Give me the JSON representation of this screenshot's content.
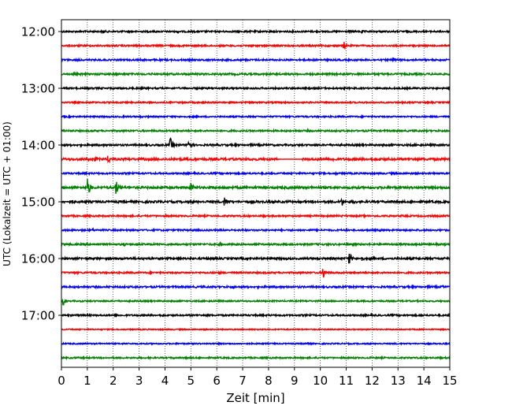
{
  "chart_data": {
    "type": "line",
    "title": "",
    "xlabel": "Zeit  [min]",
    "ylabel": "UTC (Lokalzeit = UTC + 01:00)",
    "xlim": [
      0,
      15
    ],
    "x_ticks": [
      "0",
      "1",
      "2",
      "3",
      "4",
      "5",
      "6",
      "7",
      "8",
      "9",
      "10",
      "11",
      "12",
      "13",
      "14",
      "15"
    ],
    "y_ticks": [
      {
        "row": 0,
        "label": "12:00"
      },
      {
        "row": 4,
        "label": "13:00"
      },
      {
        "row": 8,
        "label": "14:00"
      },
      {
        "row": 12,
        "label": "15:00"
      },
      {
        "row": 16,
        "label": "16:00"
      },
      {
        "row": 20,
        "label": "17:00"
      }
    ],
    "grid": "vertical dotted at each minute",
    "trace_colors": [
      "#000000",
      "#ff0000",
      "#0000ff",
      "#008000"
    ],
    "rows": [
      {
        "start": "12:00",
        "color": "#000000",
        "amp": 1.0,
        "events": [
          {
            "t": 1.6,
            "a": 4
          },
          {
            "t": 4.5,
            "a": 2.5
          },
          {
            "t": 11.6,
            "a": 2.5
          }
        ]
      },
      {
        "start": "12:15",
        "color": "#ff0000",
        "amp": 1.0,
        "events": [
          {
            "t": 10.9,
            "a": 6
          },
          {
            "t": 7.3,
            "a": 2.5
          }
        ]
      },
      {
        "start": "12:30",
        "color": "#0000ff",
        "amp": 1.0,
        "events": [
          {
            "t": 12.8,
            "a": 5
          },
          {
            "t": 5.5,
            "a": 2
          }
        ]
      },
      {
        "start": "12:45",
        "color": "#008000",
        "amp": 1.1,
        "events": [
          {
            "t": 3.5,
            "a": 2
          },
          {
            "t": 11.2,
            "a": 2
          }
        ]
      },
      {
        "start": "13:00",
        "color": "#000000",
        "amp": 1.0,
        "events": [
          {
            "t": 6.2,
            "a": 2
          }
        ]
      },
      {
        "start": "13:15",
        "color": "#ff0000",
        "amp": 0.9,
        "events": []
      },
      {
        "start": "13:30",
        "color": "#0000ff",
        "amp": 0.9,
        "events": [
          {
            "t": 3.0,
            "a": 2
          }
        ]
      },
      {
        "start": "13:45",
        "color": "#008000",
        "amp": 1.0,
        "events": [
          {
            "t": 9.5,
            "a": 2
          }
        ]
      },
      {
        "start": "14:00",
        "color": "#000000",
        "amp": 1.1,
        "events": [
          {
            "t": 4.2,
            "a": 10
          },
          {
            "t": 4.9,
            "a": 10
          }
        ]
      },
      {
        "start": "14:15",
        "color": "#ff0000",
        "amp": 1.4,
        "events": [
          {
            "t": 1.8,
            "a": 7
          },
          {
            "t": 1.3,
            "a": 4
          },
          {
            "t": 10.5,
            "a": 3
          },
          {
            "t": 12.3,
            "a": 3
          }
        ],
        "gap": [
          8.4,
          9.3
        ]
      },
      {
        "start": "14:30",
        "color": "#0000ff",
        "amp": 1.0,
        "events": [
          {
            "t": 10.6,
            "a": 2
          }
        ]
      },
      {
        "start": "14:45",
        "color": "#008000",
        "amp": 1.4,
        "events": [
          {
            "t": 1.0,
            "a": 13
          },
          {
            "t": 2.1,
            "a": 11
          },
          {
            "t": 5.0,
            "a": 7
          },
          {
            "t": 0.7,
            "a": 3
          }
        ]
      },
      {
        "start": "15:00",
        "color": "#000000",
        "amp": 1.3,
        "events": [
          {
            "t": 6.3,
            "a": 8
          },
          {
            "t": 10.8,
            "a": 8
          },
          {
            "t": 0.4,
            "a": 4
          },
          {
            "t": 11.3,
            "a": 3
          }
        ]
      },
      {
        "start": "15:15",
        "color": "#ff0000",
        "amp": 1.0,
        "events": [
          {
            "t": 4.0,
            "a": 2
          },
          {
            "t": 10.8,
            "a": 2
          }
        ]
      },
      {
        "start": "15:30",
        "color": "#0000ff",
        "amp": 1.0,
        "events": [
          {
            "t": 1.2,
            "a": 2
          },
          {
            "t": 12.3,
            "a": 2
          }
        ]
      },
      {
        "start": "15:45",
        "color": "#008000",
        "amp": 1.1,
        "events": [
          {
            "t": 2.4,
            "a": 3
          },
          {
            "t": 6.1,
            "a": 3.5
          }
        ]
      },
      {
        "start": "16:00",
        "color": "#000000",
        "amp": 1.2,
        "events": [
          {
            "t": 11.1,
            "a": 10
          },
          {
            "t": 11.6,
            "a": 4
          },
          {
            "t": 4.6,
            "a": 2
          }
        ]
      },
      {
        "start": "16:15",
        "color": "#ff0000",
        "amp": 1.0,
        "events": [
          {
            "t": 10.1,
            "a": 9
          },
          {
            "t": 6.1,
            "a": 2
          }
        ]
      },
      {
        "start": "16:30",
        "color": "#0000ff",
        "amp": 1.1,
        "events": [
          {
            "t": 3.0,
            "a": 2.5
          },
          {
            "t": 6.6,
            "a": 2.5
          },
          {
            "t": 14.7,
            "a": 3
          }
        ]
      },
      {
        "start": "16:45",
        "color": "#008000",
        "amp": 0.9,
        "events": [
          {
            "t": 0.05,
            "a": 6
          }
        ]
      },
      {
        "start": "17:00",
        "color": "#000000",
        "amp": 1.0,
        "events": [
          {
            "t": 3.9,
            "a": 2
          }
        ]
      },
      {
        "start": "17:15",
        "color": "#ff0000",
        "amp": 0.7,
        "events": []
      },
      {
        "start": "17:30",
        "color": "#0000ff",
        "amp": 0.8,
        "events": [
          {
            "t": 9.4,
            "a": 3
          }
        ]
      },
      {
        "start": "17:45",
        "color": "#008000",
        "amp": 0.9,
        "events": [
          {
            "t": 4.3,
            "a": 2
          }
        ]
      }
    ]
  }
}
